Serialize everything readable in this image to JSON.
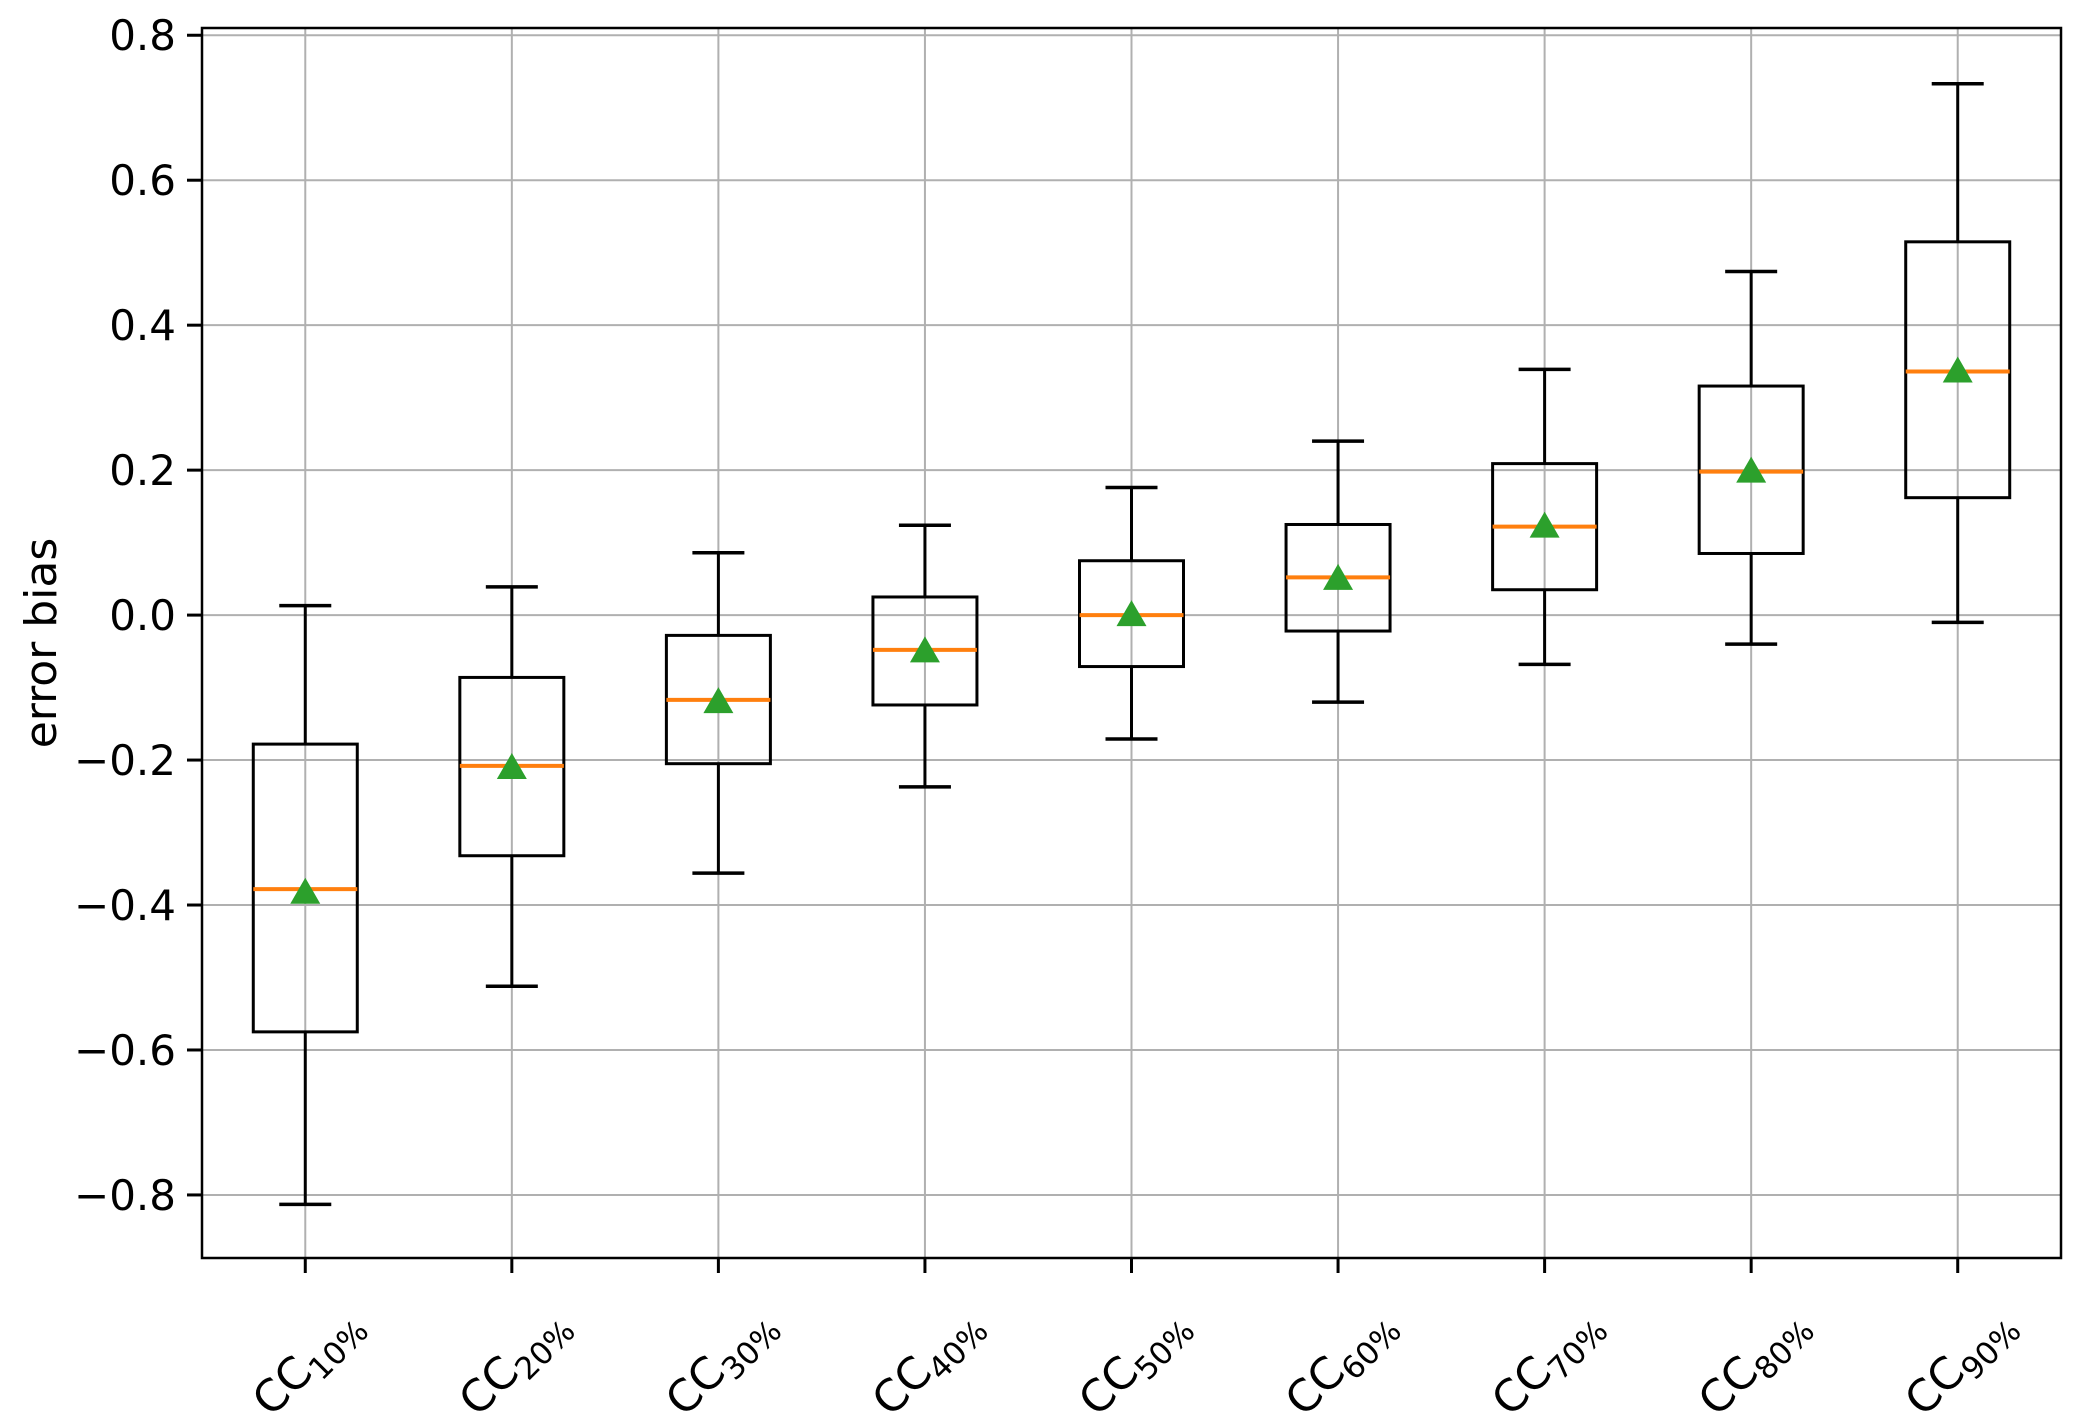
{
  "chart_data": {
    "type": "box",
    "title": "",
    "ylabel": "error bias",
    "xlabel": "",
    "grid": true,
    "legend_position": "none",
    "ylim": [
      -0.887,
      0.81
    ],
    "categories": [
      {
        "label": "CC",
        "subscript": "10%"
      },
      {
        "label": "CC",
        "subscript": "20%"
      },
      {
        "label": "CC",
        "subscript": "30%"
      },
      {
        "label": "CC",
        "subscript": "40%"
      },
      {
        "label": "CC",
        "subscript": "50%"
      },
      {
        "label": "CC",
        "subscript": "60%"
      },
      {
        "label": "CC",
        "subscript": "70%"
      },
      {
        "label": "CC",
        "subscript": "80%"
      },
      {
        "label": "CC",
        "subscript": "90%"
      }
    ],
    "stats": [
      {
        "whislo": -0.813,
        "q1": -0.575,
        "med": -0.378,
        "q3": -0.178,
        "whishi": 0.013,
        "mean": -0.383
      },
      {
        "whislo": -0.512,
        "q1": -0.332,
        "med": -0.208,
        "q3": -0.086,
        "whishi": 0.039,
        "mean": -0.211
      },
      {
        "whislo": -0.356,
        "q1": -0.205,
        "med": -0.117,
        "q3": -0.028,
        "whishi": 0.086,
        "mean": -0.12
      },
      {
        "whislo": -0.237,
        "q1": -0.124,
        "med": -0.048,
        "q3": 0.025,
        "whishi": 0.124,
        "mean": -0.05
      },
      {
        "whislo": -0.171,
        "q1": -0.071,
        "med": 0.0,
        "q3": 0.075,
        "whishi": 0.176,
        "mean": 0.0
      },
      {
        "whislo": -0.12,
        "q1": -0.022,
        "med": 0.052,
        "q3": 0.125,
        "whishi": 0.24,
        "mean": 0.05
      },
      {
        "whislo": -0.068,
        "q1": 0.035,
        "med": 0.122,
        "q3": 0.209,
        "whishi": 0.339,
        "mean": 0.122
      },
      {
        "whislo": -0.04,
        "q1": 0.085,
        "med": 0.198,
        "q3": 0.316,
        "whishi": 0.474,
        "mean": 0.198
      },
      {
        "whislo": -0.01,
        "q1": 0.162,
        "med": 0.336,
        "q3": 0.515,
        "whishi": 0.733,
        "mean": 0.336
      }
    ],
    "yticks": [
      {
        "value": 0.8,
        "label": "0.8"
      },
      {
        "value": 0.6,
        "label": "0.6"
      },
      {
        "value": 0.4,
        "label": "0.4"
      },
      {
        "value": 0.2,
        "label": "0.2"
      },
      {
        "value": 0.0,
        "label": "0.0"
      },
      {
        "value": -0.2,
        "label": "−0.2"
      },
      {
        "value": -0.4,
        "label": "−0.4"
      },
      {
        "value": -0.6,
        "label": "−0.6"
      },
      {
        "value": -0.8,
        "label": "−0.8"
      }
    ],
    "colors": {
      "median": "#ff7f0e",
      "mean_marker": "#2ca02c",
      "box_edge": "#000000",
      "grid": "#b0b0b0",
      "spine": "#000000",
      "background": "#ffffff"
    }
  }
}
